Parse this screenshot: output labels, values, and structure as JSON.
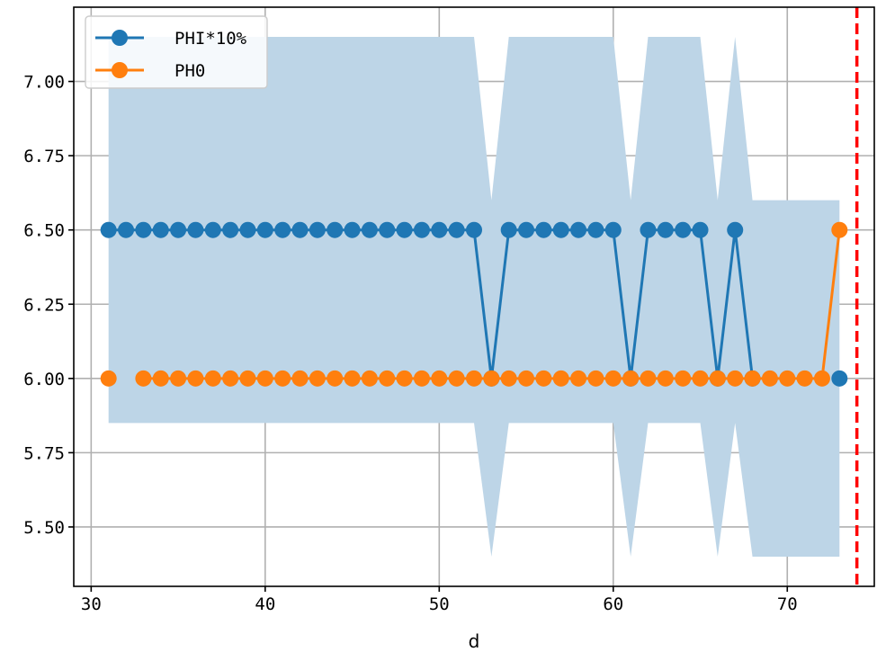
{
  "chart_data": {
    "type": "line",
    "title": "",
    "xlabel": "d",
    "ylabel": "",
    "xlim": [
      29,
      75
    ],
    "ylim": [
      5.3,
      7.25
    ],
    "x_ticks": [
      30,
      40,
      50,
      60,
      70
    ],
    "y_ticks": [
      5.5,
      5.75,
      6.0,
      6.25,
      6.5,
      6.75,
      7.0
    ],
    "x_tick_labels": [
      "30",
      "40",
      "50",
      "60",
      "70"
    ],
    "y_tick_labels": [
      "5.50",
      "5.75",
      "6.00",
      "6.25",
      "6.50",
      "6.75",
      "7.00"
    ],
    "grid": true,
    "legend_position": "top-left",
    "vline": {
      "x": 74,
      "color": "#ff0000",
      "style": "dashed"
    },
    "band": {
      "color": "#bdd5e7",
      "x": [
        31,
        52,
        53,
        54,
        60,
        61,
        62,
        65,
        66,
        67,
        68,
        73
      ],
      "upper": [
        7.15,
        7.15,
        6.6,
        7.15,
        7.15,
        6.6,
        7.15,
        7.15,
        6.6,
        7.15,
        6.6,
        6.6
      ],
      "lower": [
        5.85,
        5.85,
        5.4,
        5.85,
        5.85,
        5.4,
        5.85,
        5.85,
        5.4,
        5.85,
        5.4,
        5.4
      ]
    },
    "series": [
      {
        "name": "PHI*10%",
        "color": "#1f77b4",
        "x": [
          31,
          32,
          33,
          34,
          35,
          36,
          37,
          38,
          39,
          40,
          41,
          42,
          43,
          44,
          45,
          46,
          47,
          48,
          49,
          50,
          51,
          52,
          53,
          54,
          55,
          56,
          57,
          58,
          59,
          60,
          61,
          62,
          63,
          64,
          65,
          66,
          67,
          68,
          73
        ],
        "y": [
          6.5,
          6.5,
          6.5,
          6.5,
          6.5,
          6.5,
          6.5,
          6.5,
          6.5,
          6.5,
          6.5,
          6.5,
          6.5,
          6.5,
          6.5,
          6.5,
          6.5,
          6.5,
          6.5,
          6.5,
          6.5,
          6.5,
          6.0,
          6.5,
          6.5,
          6.5,
          6.5,
          6.5,
          6.5,
          6.5,
          6.0,
          6.5,
          6.5,
          6.5,
          6.5,
          6.0,
          6.5,
          6.0,
          6.0
        ],
        "segments": [
          [
            31,
            68
          ],
          [
            73,
            73
          ]
        ]
      },
      {
        "name": "PH0",
        "color": "#ff7f0e",
        "x": [
          31,
          33,
          34,
          35,
          36,
          37,
          38,
          39,
          40,
          41,
          42,
          43,
          44,
          45,
          46,
          47,
          48,
          49,
          50,
          51,
          52,
          53,
          54,
          55,
          56,
          57,
          58,
          59,
          60,
          61,
          62,
          63,
          64,
          65,
          66,
          67,
          68,
          69,
          70,
          71,
          72,
          73
        ],
        "y": [
          6.0,
          6.0,
          6.0,
          6.0,
          6.0,
          6.0,
          6.0,
          6.0,
          6.0,
          6.0,
          6.0,
          6.0,
          6.0,
          6.0,
          6.0,
          6.0,
          6.0,
          6.0,
          6.0,
          6.0,
          6.0,
          6.0,
          6.0,
          6.0,
          6.0,
          6.0,
          6.0,
          6.0,
          6.0,
          6.0,
          6.0,
          6.0,
          6.0,
          6.0,
          6.0,
          6.0,
          6.0,
          6.0,
          6.0,
          6.0,
          6.0,
          6.5
        ],
        "segments": [
          [
            31,
            31
          ],
          [
            33,
            73
          ]
        ]
      }
    ]
  }
}
